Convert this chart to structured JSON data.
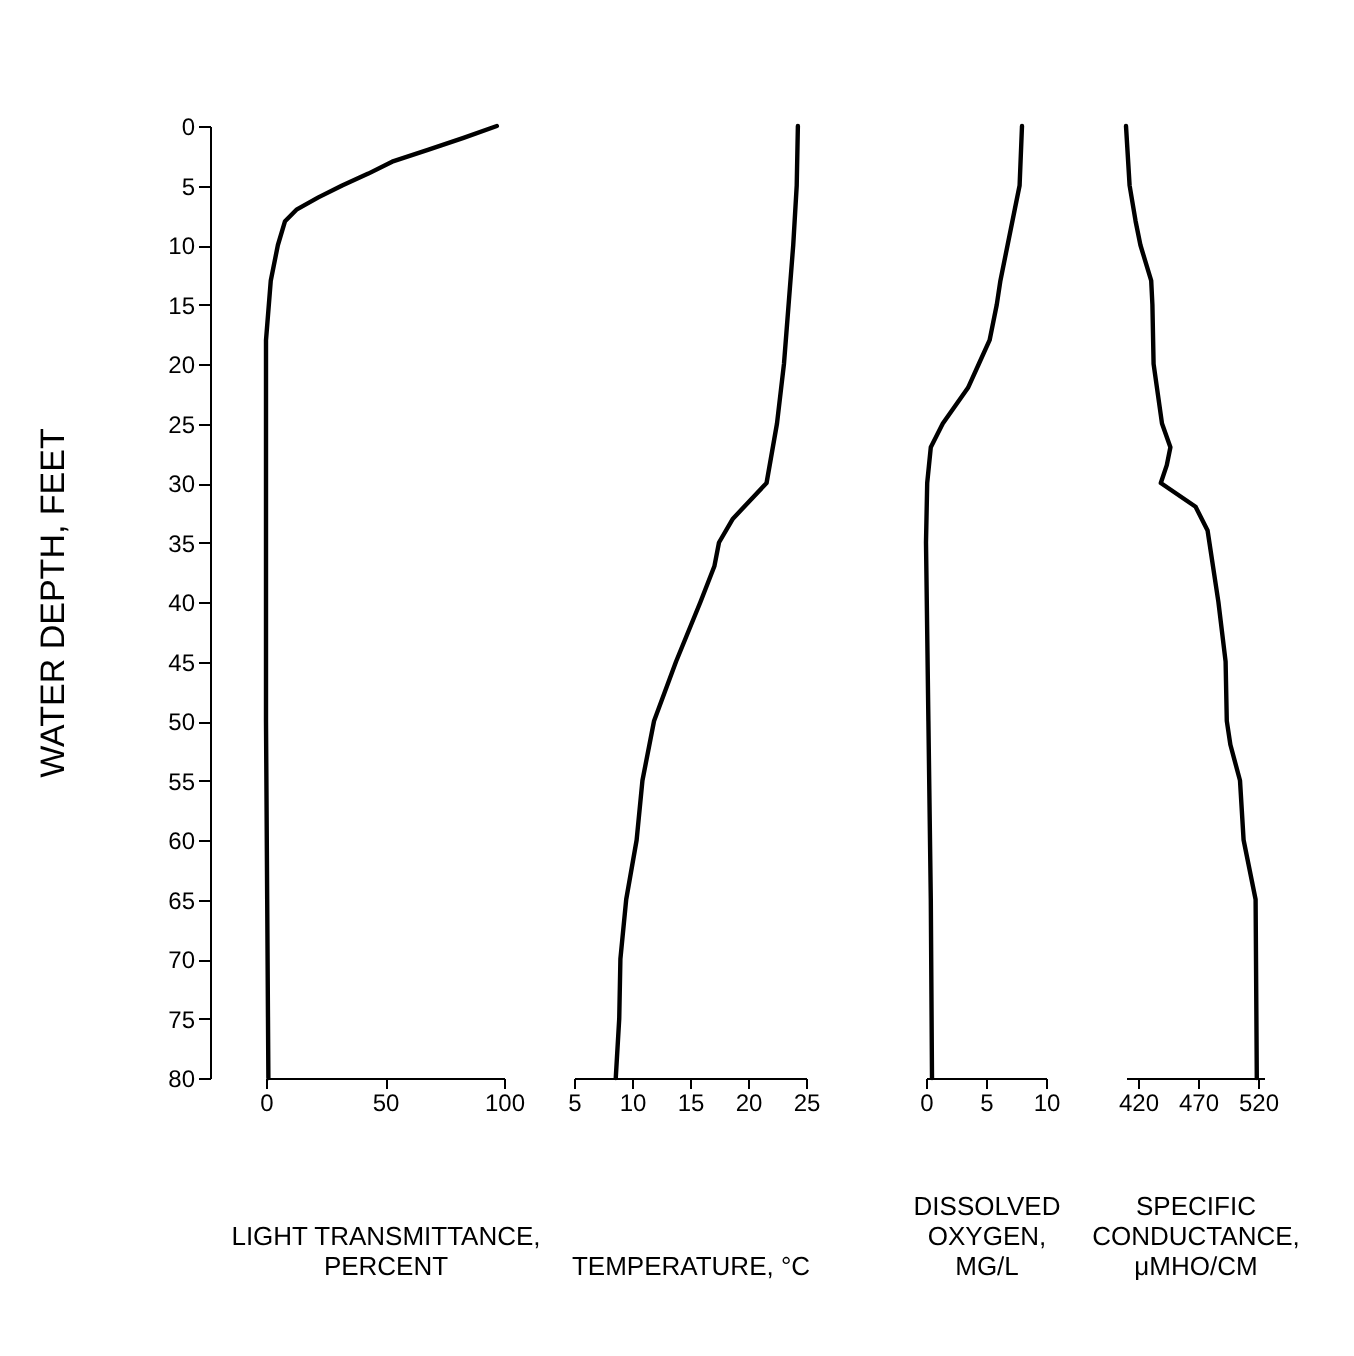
{
  "chart_data": [
    {
      "type": "line",
      "xlabel": "LIGHT TRANSMITTANCE,\nPERCENT",
      "ylabel": "WATER DEPTH, FEET",
      "color": "#000000",
      "xlim": [
        0,
        100
      ],
      "xticks": [
        0,
        50,
        100
      ],
      "ylim": [
        80,
        0
      ],
      "yticks": [
        0,
        5,
        10,
        15,
        20,
        25,
        30,
        35,
        40,
        45,
        50,
        55,
        60,
        65,
        70,
        75,
        80
      ],
      "x": [
        97,
        83,
        68,
        53,
        43,
        32,
        22,
        13,
        8,
        5,
        2,
        0,
        0,
        0,
        0.5,
        1
      ],
      "values": [
        0,
        1,
        2,
        3,
        4,
        5,
        6,
        7,
        8,
        10,
        13,
        18,
        30,
        50,
        65,
        80
      ]
    },
    {
      "type": "line",
      "xlabel": "TEMPERATURE, °C",
      "color": "#000000",
      "xlim": [
        5,
        25
      ],
      "xticks": [
        5,
        10,
        15,
        20,
        25
      ],
      "ylim": [
        80,
        0
      ],
      "tick_labels": "x",
      "x": [
        24.3,
        24.2,
        23.9,
        23.5,
        23.1,
        22.5,
        21.6,
        18.7,
        17.5,
        17.1,
        15.9,
        13.8,
        11.9,
        10.9,
        10.4,
        9.5,
        9.0,
        8.9,
        8.6
      ],
      "values": [
        0,
        5,
        10,
        15,
        20,
        25,
        30,
        33,
        35,
        37,
        40,
        45,
        50,
        55,
        60,
        65,
        70,
        75,
        80
      ]
    },
    {
      "type": "line",
      "xlabel": "DISSOLVED\nOXYGEN,\nMG/L",
      "color": "#000000",
      "xlim": [
        0,
        10
      ],
      "xticks": [
        0,
        5,
        10
      ],
      "ylim": [
        80,
        0
      ],
      "tick_labels": "x",
      "x": [
        8.0,
        7.8,
        7.4,
        6.8,
        6.2,
        5.9,
        5.3,
        4.4,
        3.5,
        1.4,
        0.4,
        0.1,
        0,
        0.2,
        0.4,
        0.5
      ],
      "values": [
        0,
        5,
        7,
        10,
        13,
        15,
        18,
        20,
        22,
        25,
        27,
        30,
        35,
        50,
        65,
        80
      ]
    },
    {
      "type": "line",
      "xlabel": "SPECIFIC\nCONDUCTANCE,\nμMHO/CM",
      "color": "#000000",
      "xlim": [
        410,
        525
      ],
      "xticks": [
        420,
        470,
        520
      ],
      "ylim": [
        80,
        0
      ],
      "tick_labels": "x",
      "x": [
        410,
        413,
        418,
        422,
        431,
        432,
        433,
        440,
        447,
        444,
        439,
        468,
        478,
        487,
        493,
        494,
        497,
        505,
        508,
        518,
        519
      ],
      "values": [
        0,
        5,
        8,
        10,
        13,
        15,
        20,
        25,
        27,
        28.5,
        30,
        32,
        34,
        40,
        45,
        50,
        52,
        55,
        60,
        65,
        80
      ]
    }
  ]
}
